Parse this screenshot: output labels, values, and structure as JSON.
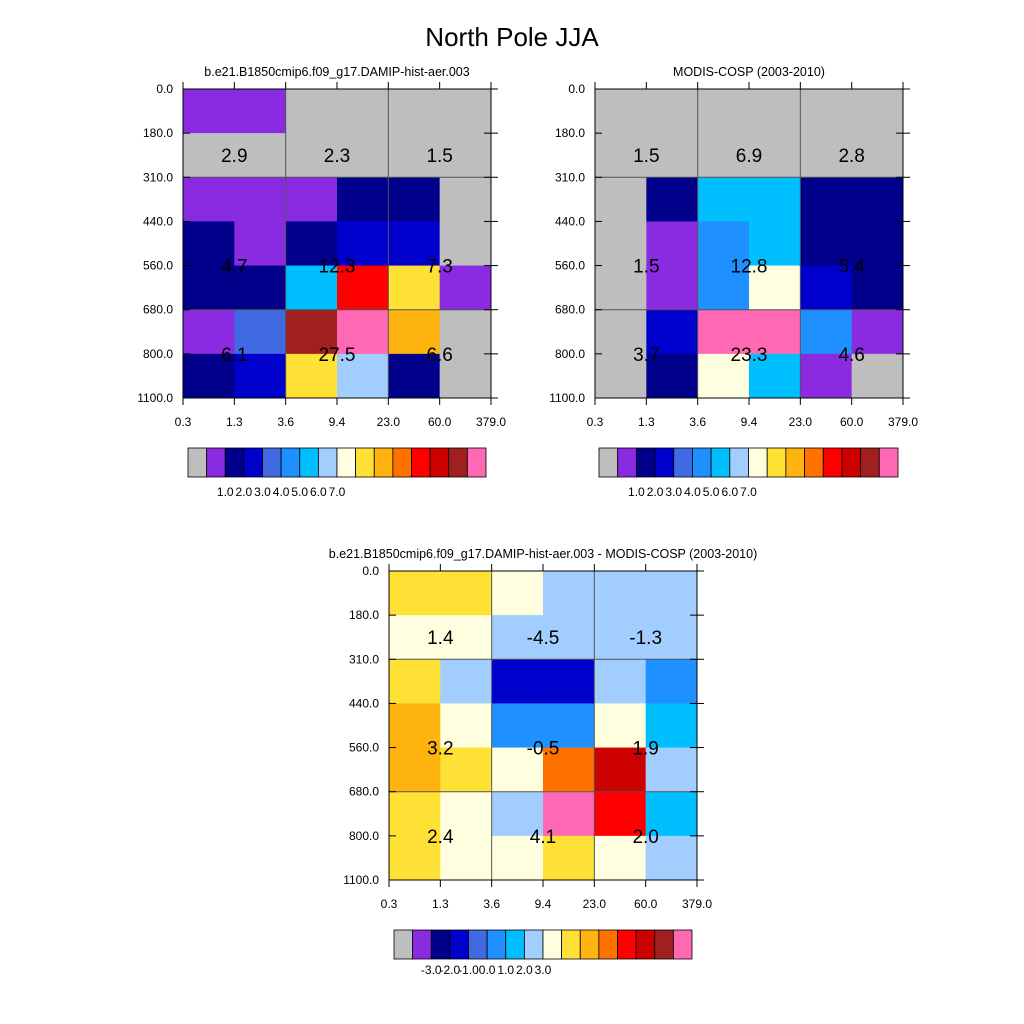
{
  "title": "North Pole JJA",
  "colorbar_full": {
    "colors": [
      "#bebebe",
      "#8a2be2",
      "#00008b",
      "#0000cd",
      "#4169e1",
      "#1e90ff",
      "#00bfff",
      "#a2cdff",
      "#ffffe0",
      "#ffe135",
      "#ffb30f",
      "#ff7200",
      "#ff0000",
      "#cd0000",
      "#a02020",
      "#ff69b4"
    ],
    "tick_labels": [
      "1.0",
      "2.0",
      "3.0",
      "4.0",
      "5.0",
      "6.0",
      "7.0"
    ]
  },
  "colorbar_diff": {
    "colors": [
      "#bebebe",
      "#8a2be2",
      "#00008b",
      "#0000cd",
      "#4169e1",
      "#1e90ff",
      "#00bfff",
      "#a2cdff",
      "#ffffe0",
      "#ffe135",
      "#ffb30f",
      "#ff7200",
      "#ff0000",
      "#cd0000",
      "#a02020",
      "#ff69b4"
    ],
    "tick_labels": [
      "-3.0",
      "-2.0",
      "-1.0",
      "0.0",
      "1.0",
      "2.0",
      "3.0"
    ]
  },
  "chart_data": [
    {
      "type": "heatmap",
      "title": "b.e21.B1850cmip6.f09_g17.DAMIP-hist-aer.003",
      "x_tick_labels": [
        "0.3",
        "1.3",
        "3.6",
        "9.4",
        "23.0",
        "60.0",
        "379.0"
      ],
      "y_tick_labels": [
        "0.0",
        "180.0",
        "310.0",
        "440.0",
        "560.0",
        "680.0",
        "800.0",
        "1100.0"
      ],
      "cell_color_index": [
        [
          1,
          1,
          0,
          0,
          0,
          0
        ],
        [
          0,
          0,
          0,
          0,
          0,
          0
        ],
        [
          1,
          1,
          1,
          2,
          2,
          0
        ],
        [
          2,
          1,
          2,
          3,
          3,
          0
        ],
        [
          2,
          2,
          6,
          12,
          9,
          1
        ],
        [
          1,
          4,
          14,
          15,
          10,
          0
        ],
        [
          2,
          3,
          9,
          7,
          2,
          0
        ]
      ],
      "group_labels": [
        [
          "2.9",
          "2.3",
          "1.5"
        ],
        [
          "4.7",
          "12.3",
          "7.3"
        ],
        [
          "6.1",
          "27.5",
          "6.6"
        ]
      ]
    },
    {
      "type": "heatmap",
      "title": "MODIS-COSP (2003-2010)",
      "x_tick_labels": [
        "0.3",
        "1.3",
        "3.6",
        "9.4",
        "23.0",
        "60.0",
        "379.0"
      ],
      "y_tick_labels": [
        "0.0",
        "180.0",
        "310.0",
        "440.0",
        "560.0",
        "680.0",
        "800.0",
        "1100.0"
      ],
      "cell_color_index": [
        [
          0,
          0,
          0,
          0,
          0,
          0
        ],
        [
          0,
          0,
          0,
          0,
          0,
          0
        ],
        [
          0,
          2,
          6,
          6,
          2,
          2
        ],
        [
          0,
          1,
          5,
          6,
          2,
          2
        ],
        [
          0,
          1,
          5,
          8,
          3,
          2
        ],
        [
          0,
          3,
          15,
          15,
          5,
          1
        ],
        [
          0,
          2,
          8,
          6,
          1,
          0
        ]
      ],
      "group_labels": [
        [
          "1.5",
          "6.9",
          "2.8"
        ],
        [
          "1.5",
          "12.8",
          "5.4"
        ],
        [
          "3.7",
          "23.3",
          "4.6"
        ]
      ]
    },
    {
      "type": "heatmap",
      "title": "b.e21.B1850cmip6.f09_g17.DAMIP-hist-aer.003 - MODIS-COSP (2003-2010)",
      "x_tick_labels": [
        "0.3",
        "1.3",
        "3.6",
        "9.4",
        "23.0",
        "60.0",
        "379.0"
      ],
      "y_tick_labels": [
        "0.0",
        "180.0",
        "310.0",
        "440.0",
        "560.0",
        "680.0",
        "800.0",
        "1100.0"
      ],
      "cell_color_index": [
        [
          9,
          9,
          8,
          7,
          7,
          7
        ],
        [
          8,
          8,
          7,
          7,
          7,
          7
        ],
        [
          9,
          7,
          3,
          3,
          7,
          5
        ],
        [
          10,
          8,
          5,
          5,
          8,
          6
        ],
        [
          10,
          9,
          8,
          11,
          13,
          7
        ],
        [
          9,
          8,
          7,
          15,
          12,
          6
        ],
        [
          9,
          8,
          8,
          9,
          8,
          7
        ]
      ],
      "group_labels": [
        [
          "1.4",
          "-4.5",
          "-1.3"
        ],
        [
          "3.2",
          "-0.5",
          "1.9"
        ],
        [
          "2.4",
          "4.1",
          "2.0"
        ]
      ]
    }
  ]
}
